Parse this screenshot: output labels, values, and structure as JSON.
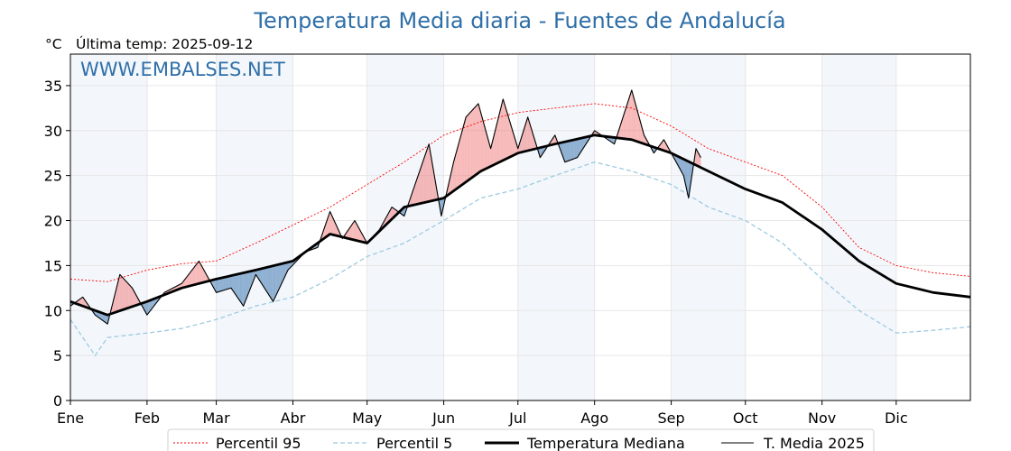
{
  "chart_data": {
    "type": "line",
    "title": "Temperatura Media diaria - Fuentes de Andalucía",
    "unit_label": "°C",
    "last_temp_label": "Última temp: 2025-09-12",
    "watermark": "WWW.EMBALSES.NET",
    "months": [
      "Ene",
      "Feb",
      "Mar",
      "Abr",
      "May",
      "Jun",
      "Jul",
      "Ago",
      "Sep",
      "Oct",
      "Nov",
      "Dic"
    ],
    "month_start_days": [
      0,
      31,
      59,
      90,
      120,
      151,
      181,
      212,
      243,
      273,
      304,
      334
    ],
    "xlim": [
      0,
      364
    ],
    "ylim": [
      0,
      38.5
    ],
    "yticks": [
      0,
      5,
      10,
      15,
      20,
      25,
      30,
      35
    ],
    "grid": true,
    "legend_position": "bottom",
    "colors": {
      "p95": "#ff0000",
      "p5": "#9ecae1",
      "median": "#000000",
      "current": "#000000",
      "above_fill": "#f08080",
      "below_fill": "#4a7fb5",
      "band": "#f3f7fb",
      "title": "#2f6fa8"
    },
    "series": [
      {
        "name": "Percentil 95",
        "style": "dotted-red",
        "x": [
          0,
          15,
          31,
          45,
          59,
          75,
          90,
          105,
          120,
          135,
          151,
          166,
          181,
          196,
          212,
          227,
          243,
          258,
          273,
          288,
          304,
          319,
          334,
          349,
          364
        ],
        "values": [
          13.5,
          13.2,
          14.5,
          15.2,
          15.5,
          17.5,
          19.5,
          21.5,
          24.0,
          26.5,
          29.5,
          31.0,
          32.0,
          32.5,
          33.0,
          32.5,
          30.5,
          28.0,
          26.5,
          25.0,
          21.5,
          17.0,
          15.0,
          14.2,
          13.8
        ]
      },
      {
        "name": "Percentil 5",
        "style": "dashed-lightblue",
        "x": [
          0,
          10,
          15,
          31,
          45,
          59,
          75,
          90,
          105,
          120,
          135,
          151,
          166,
          181,
          196,
          212,
          227,
          243,
          258,
          273,
          288,
          304,
          319,
          334,
          349,
          364
        ],
        "values": [
          9.0,
          5.0,
          7.0,
          7.5,
          8.0,
          9.0,
          10.5,
          11.5,
          13.5,
          16.0,
          17.5,
          20.0,
          22.5,
          23.5,
          25.0,
          26.5,
          25.5,
          24.0,
          21.5,
          20.0,
          17.5,
          13.5,
          10.0,
          7.5,
          7.8,
          8.2
        ]
      },
      {
        "name": "Temperatura Mediana",
        "style": "thick-black",
        "x": [
          0,
          15,
          31,
          45,
          59,
          75,
          90,
          105,
          120,
          135,
          151,
          166,
          181,
          196,
          212,
          227,
          243,
          258,
          273,
          288,
          304,
          319,
          334,
          349,
          364
        ],
        "values": [
          11.0,
          9.5,
          11.0,
          12.5,
          13.5,
          14.5,
          15.5,
          18.5,
          17.5,
          21.5,
          22.5,
          25.5,
          27.5,
          28.5,
          29.5,
          29.0,
          27.5,
          25.5,
          23.5,
          22.0,
          19.0,
          15.5,
          13.0,
          12.0,
          11.5
        ]
      },
      {
        "name": "T. Media 2025",
        "style": "thin-black",
        "x": [
          0,
          5,
          10,
          15,
          20,
          25,
          31,
          38,
          45,
          52,
          59,
          65,
          70,
          75,
          82,
          88,
          95,
          100,
          105,
          110,
          115,
          120,
          125,
          130,
          135,
          140,
          145,
          150,
          155,
          160,
          165,
          170,
          175,
          181,
          185,
          190,
          196,
          200,
          205,
          212,
          220,
          227,
          232,
          236,
          240,
          243,
          248,
          250,
          253,
          255
        ],
        "values": [
          10.5,
          11.5,
          9.5,
          8.5,
          14.0,
          12.5,
          9.5,
          12.0,
          13.0,
          15.5,
          12.0,
          12.5,
          10.5,
          14.0,
          11.0,
          14.5,
          16.5,
          17.0,
          21.0,
          18.0,
          20.0,
          17.5,
          19.0,
          21.5,
          20.5,
          24.5,
          28.5,
          20.5,
          26.5,
          31.5,
          33.0,
          28.0,
          33.5,
          28.0,
          31.5,
          27.0,
          29.5,
          26.5,
          27.0,
          30.0,
          28.5,
          34.5,
          29.5,
          27.5,
          29.0,
          27.5,
          25.0,
          22.5,
          28.0,
          27.0
        ]
      }
    ]
  }
}
